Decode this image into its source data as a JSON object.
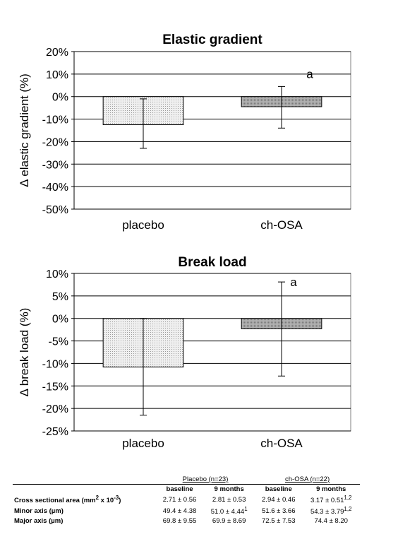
{
  "chart_data": [
    {
      "type": "bar",
      "title": "Elastic gradient",
      "ylabel": "Δ elastic gradient (%)",
      "xlabel": "",
      "categories": [
        "placebo",
        "ch-OSA"
      ],
      "values": [
        -12.5,
        -4.5
      ],
      "error_low": [
        -23,
        -14
      ],
      "error_high": [
        -1,
        4.5
      ],
      "annotations": [
        {
          "category": "ch-OSA",
          "text": "a"
        }
      ],
      "ylim": [
        -50,
        20
      ],
      "yticks": [
        20,
        10,
        0,
        -10,
        -20,
        -30,
        -40,
        -50
      ],
      "ytick_labels": [
        "20%",
        "10%",
        "0%",
        "-10%",
        "-20%",
        "-30%",
        "-40%",
        "-50%"
      ],
      "grid": true,
      "bar_colors": [
        "#efefef",
        "#b0b0b0"
      ]
    },
    {
      "type": "bar",
      "title": "Break load",
      "ylabel": "Δ break load (%)",
      "xlabel": "",
      "categories": [
        "placebo",
        "ch-OSA"
      ],
      "values": [
        -10.8,
        -2.3
      ],
      "error_low": [
        -21.5,
        -12.8
      ],
      "error_high": [
        0,
        8.1
      ],
      "annotations": [
        {
          "category": "ch-OSA",
          "text": "a"
        }
      ],
      "ylim": [
        -25,
        10
      ],
      "yticks": [
        10,
        5,
        0,
        -5,
        -10,
        -15,
        -20,
        -25
      ],
      "ytick_labels": [
        "10%",
        "5%",
        "0%",
        "-5%",
        "-10%",
        "-15%",
        "-20%",
        "-25%"
      ],
      "grid": true,
      "bar_colors": [
        "#efefef",
        "#b0b0b0"
      ]
    }
  ],
  "table": {
    "groups": [
      "Placebo (n=23)",
      "ch-OSA (n=22)"
    ],
    "subheaders": [
      "baseline",
      "9 months",
      "baseline",
      "9 months"
    ],
    "rows": [
      {
        "label": "Cross sectional area (mm",
        "label_sup": "2",
        "label_tail": " x 10",
        "label_sup2": "-3",
        "label_end": ")",
        "cells": [
          [
            "2.71 ± 0.56",
            ""
          ],
          [
            "2.81 ± 0.53",
            ""
          ],
          [
            "2.94 ± 0.46",
            ""
          ],
          [
            "3.17 ± 0.51",
            "1,2"
          ]
        ]
      },
      {
        "label": "Minor axis (µm)",
        "label_sup": "",
        "label_tail": "",
        "label_sup2": "",
        "label_end": "",
        "cells": [
          [
            "49.4 ± 4.38",
            ""
          ],
          [
            "51.0 ± 4.44",
            "1"
          ],
          [
            "51.6 ± 3.66",
            ""
          ],
          [
            "54.3 ± 3.79",
            "1,2"
          ]
        ]
      },
      {
        "label": "Major axis (µm)",
        "label_sup": "",
        "label_tail": "",
        "label_sup2": "",
        "label_end": "",
        "cells": [
          [
            "69.8 ± 9.55",
            ""
          ],
          [
            "69.9 ± 8.69",
            ""
          ],
          [
            "72.5 ± 7.53",
            ""
          ],
          [
            "74.4 ± 8.20",
            ""
          ]
        ]
      }
    ]
  }
}
